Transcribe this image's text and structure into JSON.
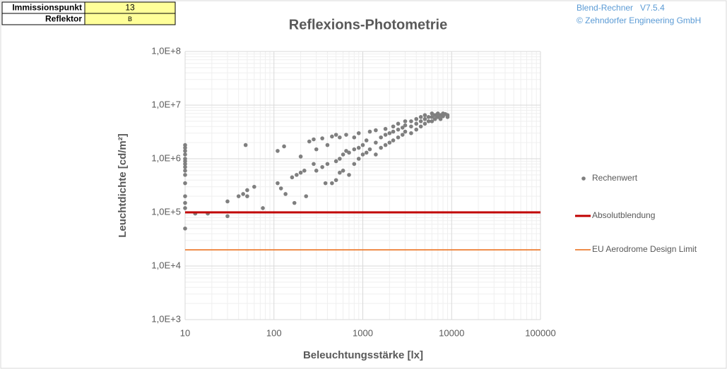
{
  "info_table": {
    "rows": [
      [
        "Immissionspunkt",
        "13"
      ],
      [
        "Reflektor",
        "B"
      ]
    ]
  },
  "branding": {
    "product": "Blend-Rechner   V7.5.4",
    "company": "© Zehndorfer Engineering GmbH"
  },
  "chart_data": {
    "type": "scatter",
    "title": "Reflexions-Photometrie",
    "x_label": "Beleuchtungsstärke [lx]",
    "y_label": "Leuchtdichte [cd/m²]",
    "xlog": true,
    "ylog": true,
    "grid": true,
    "minor_grid": true,
    "legend": "right",
    "xlim": [
      10,
      100000
    ],
    "xticks": [
      10,
      100,
      1000,
      10000,
      100000
    ],
    "ylim": [
      1000,
      100000000
    ],
    "yticks": [
      {
        "value": 1000,
        "label": "1,0E+3"
      },
      {
        "value": 10000,
        "label": "1,0E+4"
      },
      {
        "value": 100000,
        "label": "1,0E+5"
      },
      {
        "value": 1000000,
        "label": "1,0E+6"
      },
      {
        "value": 10000000,
        "label": "1,0E+7"
      },
      {
        "value": 100000000,
        "label": "1,0E+8"
      }
    ],
    "series": [
      {
        "name": "Rechenwert",
        "type": "scatter",
        "color": "#7f7f7f",
        "x": [
          10,
          10,
          10,
          10,
          10,
          10,
          10,
          10,
          10,
          10,
          10,
          10,
          10,
          10,
          10,
          13,
          18,
          30,
          30,
          40,
          45,
          48,
          50,
          50,
          60,
          75,
          110,
          110,
          120,
          130,
          135,
          160,
          170,
          180,
          200,
          200,
          220,
          230,
          250,
          280,
          280,
          300,
          300,
          350,
          350,
          380,
          400,
          400,
          450,
          450,
          500,
          500,
          500,
          550,
          550,
          550,
          600,
          600,
          650,
          650,
          700,
          700,
          800,
          800,
          800,
          900,
          900,
          900,
          1000,
          1000,
          1100,
          1100,
          1200,
          1200,
          1400,
          1400,
          1400,
          1600,
          1600,
          1800,
          1800,
          1800,
          2000,
          2000,
          2200,
          2200,
          2200,
          2500,
          2500,
          2500,
          2800,
          2800,
          3000,
          3000,
          3000,
          3500,
          3500,
          3500,
          4000,
          4000,
          4000,
          4500,
          4500,
          4500,
          5000,
          5000,
          5000,
          5500,
          5500,
          6000,
          6000,
          6000,
          6500,
          6500,
          7000,
          7000,
          7500,
          7500,
          8000,
          8000,
          8500,
          9000,
          9000
        ],
        "values": [
          50000,
          120000,
          150000,
          200000,
          350000,
          500000,
          600000,
          700000,
          800000,
          900000,
          1000000,
          1200000,
          1400000,
          1600000,
          1800000,
          95000,
          95000,
          85000,
          160000,
          200000,
          220000,
          1800000,
          200000,
          260000,
          300000,
          120000,
          350000,
          1400000,
          280000,
          1700000,
          220000,
          450000,
          150000,
          500000,
          550000,
          1100000,
          600000,
          200000,
          2100000,
          2300000,
          800000,
          600000,
          1500000,
          2400000,
          700000,
          350000,
          1800000,
          800000,
          2600000,
          350000,
          2800000,
          900000,
          400000,
          2500000,
          1000000,
          550000,
          1200000,
          600000,
          2800000,
          1400000,
          500000,
          1300000,
          1500000,
          2500000,
          800000,
          3000000,
          1600000,
          1000000,
          1200000,
          1800000,
          2200000,
          1300000,
          3200000,
          1500000,
          3400000,
          2000000,
          1200000,
          2500000,
          1600000,
          3600000,
          2800000,
          1800000,
          3000000,
          2000000,
          4000000,
          3200000,
          2200000,
          4500000,
          3500000,
          2500000,
          3800000,
          2800000,
          5000000,
          4200000,
          3200000,
          5000000,
          4000000,
          3000000,
          5500000,
          4500000,
          3500000,
          6000000,
          5000000,
          4000000,
          6500000,
          5500000,
          4500000,
          6000000,
          5000000,
          7000000,
          6000000,
          5000000,
          6500000,
          5500000,
          7000000,
          6000000,
          6500000,
          5500000,
          7000000,
          6200000,
          6800000,
          6500000,
          6000000
        ]
      },
      {
        "name": "Absolutblendung",
        "type": "line",
        "color": "#c00000",
        "x": [
          10,
          100000
        ],
        "values": [
          100000,
          100000
        ]
      },
      {
        "name": "EU Aerodrome Design Limit",
        "type": "line",
        "color": "#ed7d31",
        "x": [
          10,
          100000
        ],
        "values": [
          20000,
          20000
        ]
      }
    ]
  }
}
